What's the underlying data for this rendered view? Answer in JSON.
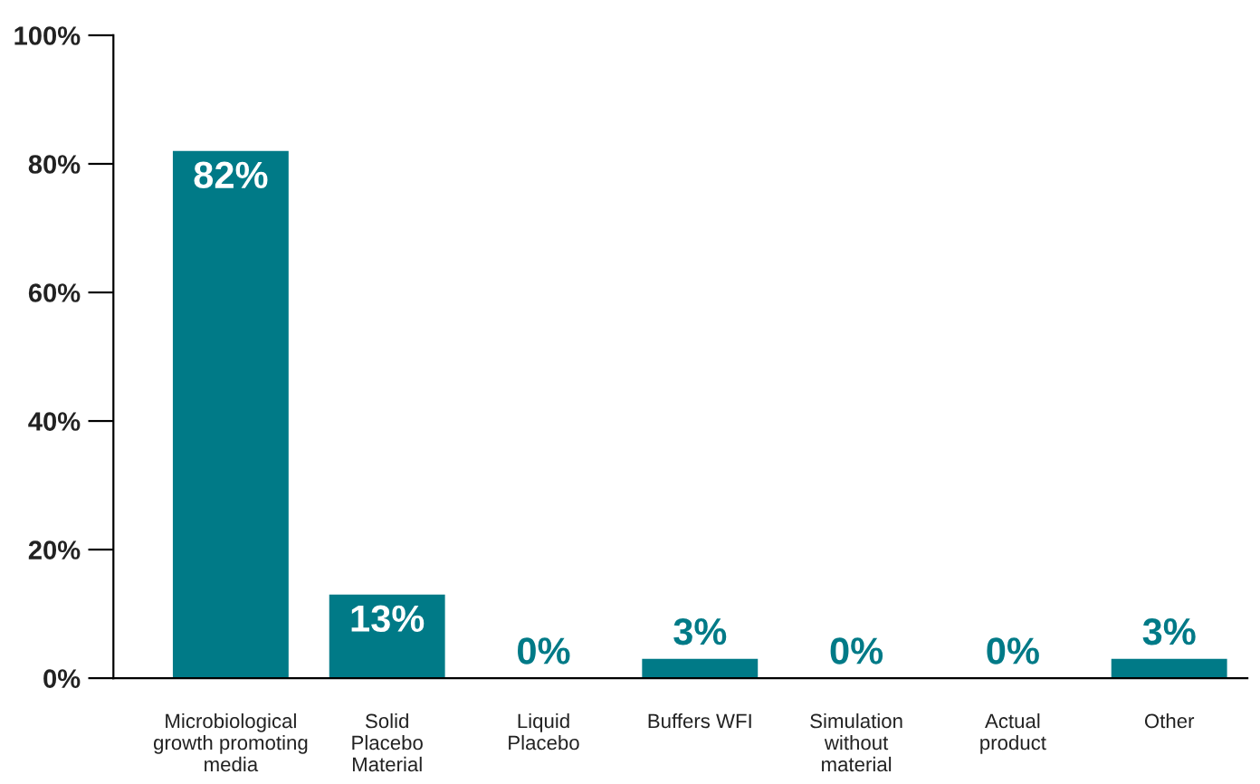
{
  "chart_data": {
    "type": "bar",
    "categories": [
      "Microbiological\ngrowth promoting\nmedia",
      "Solid\nPlacebo\nMaterial",
      "Liquid\nPlacebo",
      "Buffers WFI",
      "Simulation\nwithout\nmaterial",
      "Actual\nproduct",
      "Other"
    ],
    "values": [
      82,
      13,
      0,
      3,
      0,
      0,
      3
    ],
    "color": "#007a87",
    "value_labels": [
      "82%",
      "13%",
      "0%",
      "3%",
      "0%",
      "0%",
      "3%"
    ],
    "ylim": [
      0,
      100
    ],
    "yticks": [
      {
        "value": 0,
        "label": "0%"
      },
      {
        "value": 20,
        "label": "20%"
      },
      {
        "value": 40,
        "label": "40%"
      },
      {
        "value": 60,
        "label": "60%"
      },
      {
        "value": 80,
        "label": "80%"
      },
      {
        "value": 100,
        "label": "100%"
      }
    ],
    "grid": false,
    "legend": false
  }
}
